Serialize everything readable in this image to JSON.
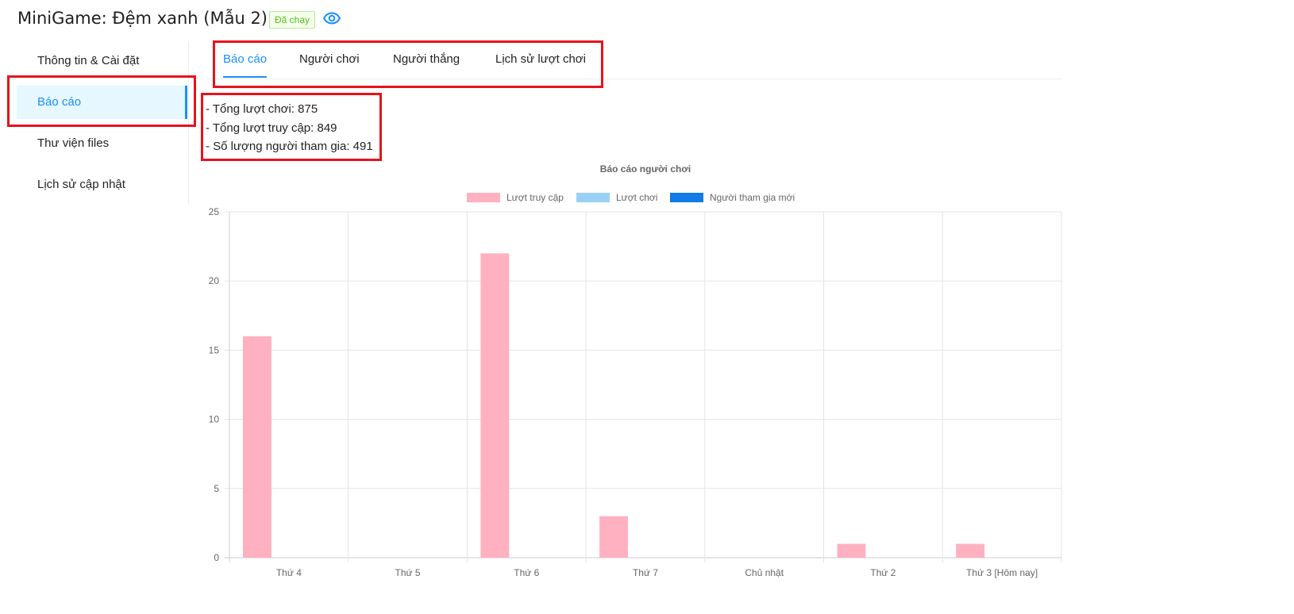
{
  "header": {
    "title": "MiniGame: Đệm xanh (Mẫu 2)",
    "status": "Đã chạy",
    "view_icon": "eye-icon"
  },
  "sidebar": {
    "items": [
      {
        "label": "Thông tin & Cài đặt"
      },
      {
        "label": "Báo cáo",
        "active": true
      },
      {
        "label": "Thư viện files"
      },
      {
        "label": "Lịch sử cập nhật"
      }
    ]
  },
  "tabs": [
    {
      "label": "Báo cáo",
      "active": true
    },
    {
      "label": "Người chơi"
    },
    {
      "label": "Người thắng"
    },
    {
      "label": "Lịch sử lượt chơi"
    }
  ],
  "stats": [
    "- Tổng lượt chơi: 875",
    "- Tổng lượt truy cập: 849",
    "- Số lượng người tham gia: 491"
  ],
  "chart_data": {
    "type": "bar",
    "title": "Báo cáo người chơi",
    "categories": [
      "Thứ 4",
      "Thứ 5",
      "Thứ 6",
      "Thứ 7",
      "Chủ nhật",
      "Thứ 2",
      "Thứ 3 [Hôm nay]"
    ],
    "series": [
      {
        "name": "Lượt truy cập",
        "color": "#ffb1c1",
        "values": [
          16,
          0,
          22,
          3,
          0,
          1,
          1
        ]
      },
      {
        "name": "Lượt chơi",
        "color": "#9ad0f5",
        "values": [
          0,
          0,
          0,
          0,
          0,
          0,
          0
        ]
      },
      {
        "name": "Người tham gia mới",
        "color": "#117be6",
        "values": [
          0,
          0,
          0,
          0,
          0,
          0,
          0
        ]
      }
    ],
    "ylim": [
      0,
      25
    ],
    "yticks": [
      0,
      5,
      10,
      15,
      20,
      25
    ],
    "grid": true,
    "legend": "top"
  },
  "colors": {
    "accent": "#1890ff",
    "highlight_box": "#e8121c"
  }
}
